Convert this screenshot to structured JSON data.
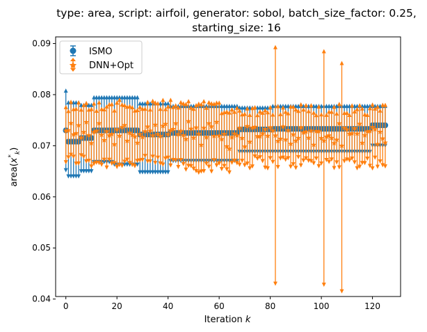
{
  "chart_data": {
    "type": "scatter",
    "title_line1": "type: area, script: airfoil, generator: sobol, batch_size_factor: 0.25,",
    "title_line2": "starting_size: 16",
    "xlabel": "Iteration k",
    "ylabel": "area(x*k)",
    "xlim": [
      -4,
      131
    ],
    "ylim": [
      0.0405,
      0.0913
    ],
    "xticks": [
      0,
      20,
      40,
      60,
      80,
      100,
      120
    ],
    "yticks": [
      0.04,
      0.05,
      0.06,
      0.07,
      0.08,
      0.09
    ],
    "ytick_labels": [
      "0.04",
      "0.05",
      "0.06",
      "0.07",
      "0.08",
      "0.09"
    ],
    "legend_position": "upper left",
    "grid": false,
    "series": [
      {
        "name": "ISMO",
        "color": "#1f77b4",
        "marker": "circle",
        "segments": [
          {
            "x_start": 0,
            "x_end": 0,
            "mean": 0.073,
            "low": 0.0652,
            "high": 0.0808
          },
          {
            "x_start": 1,
            "x_end": 5,
            "mean": 0.0708,
            "low": 0.064,
            "high": 0.0785
          },
          {
            "x_start": 6,
            "x_end": 10,
            "mean": 0.0715,
            "low": 0.065,
            "high": 0.078
          },
          {
            "x_start": 11,
            "x_end": 18,
            "mean": 0.073,
            "low": 0.0668,
            "high": 0.0795
          },
          {
            "x_start": 19,
            "x_end": 28,
            "mean": 0.073,
            "low": 0.0663,
            "high": 0.0795
          },
          {
            "x_start": 29,
            "x_end": 40,
            "mean": 0.0722,
            "low": 0.0648,
            "high": 0.0783
          },
          {
            "x_start": 41,
            "x_end": 67,
            "mean": 0.0725,
            "low": 0.067,
            "high": 0.0778
          },
          {
            "x_start": 68,
            "x_end": 80,
            "mean": 0.0732,
            "low": 0.0688,
            "high": 0.0775
          },
          {
            "x_start": 81,
            "x_end": 119,
            "mean": 0.0733,
            "low": 0.0688,
            "high": 0.0778
          },
          {
            "x_start": 120,
            "x_end": 125,
            "mean": 0.074,
            "low": 0.07,
            "high": 0.0778
          }
        ]
      },
      {
        "name": "DNN+Opt",
        "color": "#ff7f0e",
        "marker": "star",
        "base_range": {
          "low": 0.0655,
          "high": 0.079,
          "mean": 0.0722
        },
        "outliers": [
          {
            "x": 82,
            "mean": 0.072,
            "low": 0.043,
            "high": 0.0893
          },
          {
            "x": 101,
            "mean": 0.071,
            "low": 0.0428,
            "high": 0.0885
          },
          {
            "x": 108,
            "mean": 0.07,
            "low": 0.0415,
            "high": 0.0862
          }
        ]
      }
    ]
  }
}
